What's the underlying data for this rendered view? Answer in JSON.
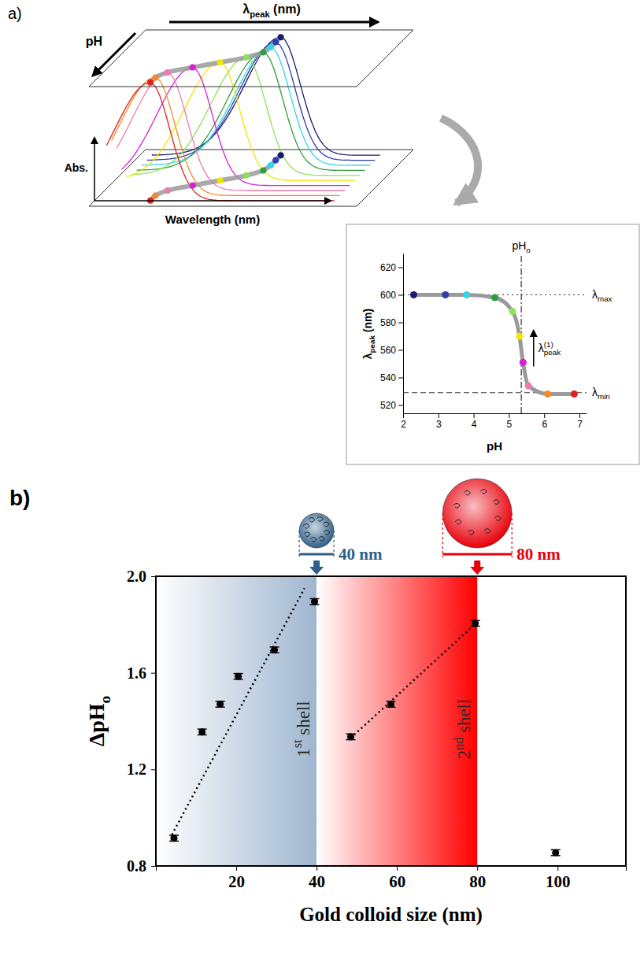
{
  "diagram": {
    "panel": "a)",
    "top_axis": [
      {
        "t": "λ"
      },
      {
        "t": "peak",
        "sub": true
      },
      {
        "t": " (nm)"
      }
    ],
    "depth_axis": "pH",
    "vertical_axis": "Abs.",
    "bottom_axis": "Wavelength (nm)"
  },
  "chart_data": [
    {
      "type": "line",
      "xlabel": "pH",
      "ylabel": [
        {
          "t": "λ"
        },
        {
          "t": "peak",
          "sub": true
        },
        {
          "t": " (nm)"
        }
      ],
      "xlim": [
        2,
        7.2
      ],
      "ylim": [
        514,
        630
      ],
      "xticks": [
        2,
        3,
        4,
        5,
        6,
        7
      ],
      "yticks": [
        520,
        540,
        560,
        580,
        600,
        620
      ],
      "marker": "circle",
      "series": [
        {
          "color": "#9a9a9a",
          "x": [
            2.3,
            3.2,
            3.8,
            4.6,
            5.1,
            5.3,
            5.4,
            5.55,
            6.1,
            6.85
          ],
          "values": [
            600,
            600,
            600,
            598,
            588,
            570,
            551,
            534,
            528,
            528
          ],
          "colors": [
            "#1a1a6e",
            "#2a3fb0",
            "#33d6e8",
            "#2e9e3e",
            "#8fe05a",
            "#f2e600",
            "#d61fd6",
            "#f07ab0",
            "#f58a2a",
            "#e0201a"
          ]
        }
      ],
      "annotations": [
        {
          "text": [
            {
              "t": "pH"
            },
            {
              "t": "o",
              "sub": true
            }
          ],
          "x": 5.35,
          "line_style": "dashdot"
        },
        {
          "text": [
            {
              "t": "λ"
            },
            {
              "t": "max",
              "sub": true
            }
          ],
          "y": 600,
          "line_style": "dotted"
        },
        {
          "text": [
            {
              "t": "λ"
            },
            {
              "t": "min",
              "sub": true
            }
          ],
          "y": 529,
          "line_style": "dashed"
        },
        {
          "text": [
            {
              "t": "λ"
            },
            {
              "t": "peak",
              "sub": true
            },
            {
              "t": "(1)",
              "sup": true
            }
          ],
          "x": 5.7,
          "y": [
            548,
            574
          ]
        }
      ]
    },
    {
      "type": "scatter",
      "panel": "b)",
      "xlabel": "Gold colloid size (nm)",
      "ylabel": [
        {
          "t": "ΔpH"
        },
        {
          "t": "o",
          "sub": true
        }
      ],
      "xlim": [
        0,
        117
      ],
      "ylim": [
        0.8,
        2.0
      ],
      "xticks": [
        20,
        40,
        60,
        80,
        100
      ],
      "yticks": [
        0.8,
        1.2,
        1.6,
        {
          "value": 2,
          "label": "2.0"
        }
      ],
      "marker": "circle",
      "color": "#000000",
      "x": [
        4.5,
        11.5,
        16,
        20.5,
        29.5,
        39.5,
        48.5,
        58.5,
        79.5,
        99.5
      ],
      "values": [
        0.915,
        1.355,
        1.47,
        1.585,
        1.695,
        1.895,
        1.335,
        1.47,
        1.805,
        0.855
      ],
      "errors": [
        0.012,
        0.012,
        0.012,
        0.012,
        0.012,
        0.012,
        0.012,
        0.012,
        0.012,
        0.012
      ],
      "trend_lines": [
        {
          "x": [
            4,
            37
          ],
          "values": [
            0.93,
            1.95
          ],
          "line_style": "dotted"
        },
        {
          "x": [
            48.5,
            80
          ],
          "values": [
            1.33,
            1.81
          ],
          "line_style": "dotted"
        }
      ],
      "regions": [
        {
          "x": [
            0,
            40
          ],
          "color": "#9fb6cf",
          "label": [
            {
              "t": "1"
            },
            {
              "t": "st",
              "sup": true
            },
            {
              "t": " shell"
            }
          ]
        },
        {
          "x": [
            40,
            80
          ],
          "color": "#ff0000",
          "label": [
            {
              "t": "2"
            },
            {
              "t": "nd",
              "sup": true
            },
            {
              "t": " shell"
            }
          ]
        }
      ],
      "particles": [
        {
          "x": 40,
          "label": "40 nm",
          "color": "#2e5f8a"
        },
        {
          "x": 80,
          "label": "80 nm",
          "color": "#e8000b"
        }
      ]
    }
  ]
}
